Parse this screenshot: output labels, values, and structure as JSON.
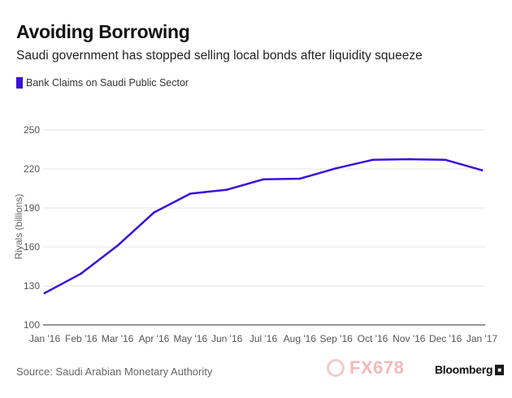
{
  "title": "Avoiding Borrowing",
  "subtitle": "Saudi government has stopped selling local bonds after liquidity squeeze",
  "legend": {
    "label": "Bank Claims on Saudi Public Sector",
    "color": "#3b10d8"
  },
  "source": "Source: Saudi Arabian Monetary Authority",
  "brand": "Bloomberg",
  "watermark": "FX678",
  "chart_data": {
    "type": "line",
    "categories": [
      "Jan '16",
      "Feb '16",
      "Mar '16",
      "Apr '16",
      "May '16",
      "Jun '16",
      "Jul '16",
      "Aug '16",
      "Sep '16",
      "Oct '16",
      "Nov '16",
      "Dec '16",
      "Jan '17"
    ],
    "series": [
      {
        "name": "Bank Claims on Saudi Public Sector",
        "color": "#3b10d8",
        "values": [
          124.5,
          139.5,
          161,
          186.5,
          201,
          204,
          212,
          212.5,
          220.5,
          227,
          227.5,
          227,
          219
        ]
      }
    ],
    "ylabel": "Riyals (billions)",
    "xlabel": "",
    "ylim": [
      100,
      250
    ],
    "yticks": [
      100,
      130,
      160,
      190,
      220,
      250
    ],
    "grid": true
  }
}
